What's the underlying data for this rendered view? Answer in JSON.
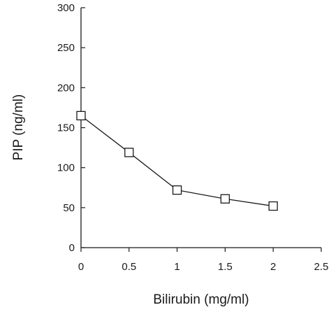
{
  "chart_data": {
    "type": "line",
    "title": "",
    "xlabel": "Bilirubin (mg/ml)",
    "ylabel": "PIP (ng/ml)",
    "xlim": [
      0,
      2.5
    ],
    "ylim": [
      0,
      300
    ],
    "x_ticks": [
      0,
      0.5,
      1,
      1.5,
      2,
      2.5
    ],
    "x_tick_labels": [
      "0",
      "0.5",
      "1",
      "1.5",
      "2",
      "2.5"
    ],
    "y_ticks": [
      0,
      50,
      100,
      150,
      200,
      250,
      300
    ],
    "y_tick_labels": [
      "0",
      "50",
      "100",
      "150",
      "200",
      "250",
      "300"
    ],
    "grid": false,
    "marker": "open-square",
    "series": [
      {
        "x": [
          0,
          0.5,
          1,
          1.5,
          2
        ],
        "y": [
          165,
          119,
          72,
          61,
          52
        ]
      }
    ]
  }
}
